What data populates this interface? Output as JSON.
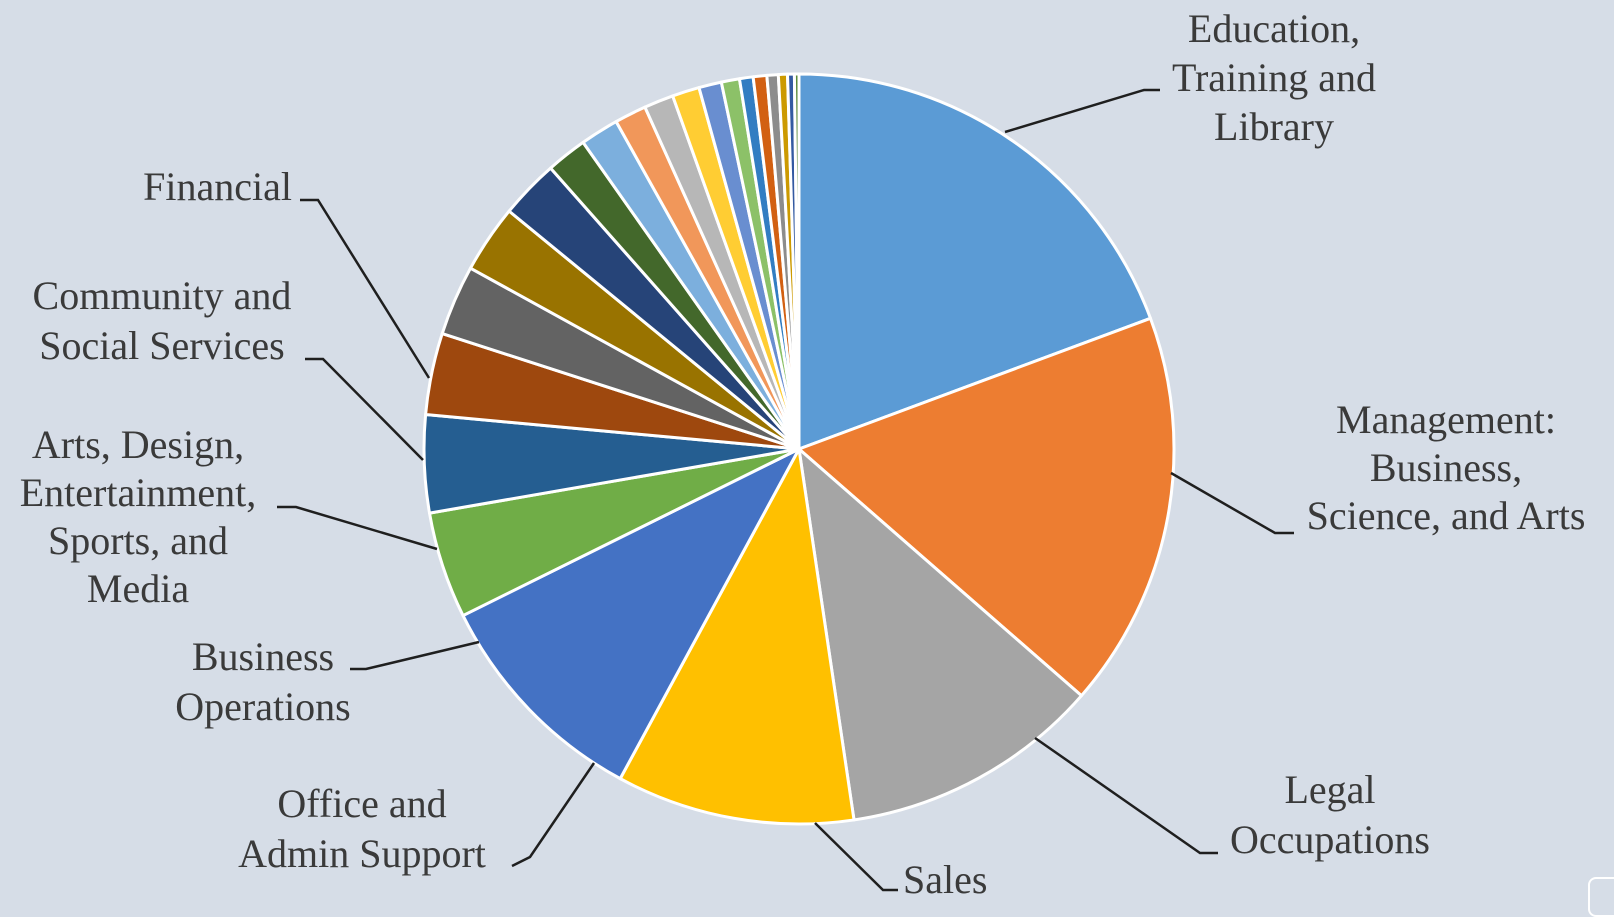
{
  "chart_data": {
    "type": "pie",
    "title": "",
    "slices": [
      {
        "label": "Education, Training and Library",
        "value": 19.8,
        "color": "#5b9bd5"
      },
      {
        "label": "Management: Business, Science, and Arts",
        "value": 17.5,
        "color": "#ed7d31"
      },
      {
        "label": "Legal Occupations",
        "value": 11.5,
        "color": "#a5a5a5"
      },
      {
        "label": "Sales",
        "value": 10.5,
        "color": "#ffc000"
      },
      {
        "label": "Office and Admin Support",
        "value": 10.0,
        "color": "#4472c4"
      },
      {
        "label": "Business Operations",
        "value": 4.7,
        "color": "#70ad47"
      },
      {
        "label": "Arts, Design, Entertainment, Sports, and Media",
        "value": 4.3,
        "color": "#255e91"
      },
      {
        "label": "Community and Social Services",
        "value": 3.6,
        "color": "#9e480e"
      },
      {
        "label": "Financial",
        "value": 3.1,
        "color": "#636363"
      },
      {
        "label": "",
        "value": 3.0,
        "color": "#997300"
      },
      {
        "label": "",
        "value": 2.6,
        "color": "#264478"
      },
      {
        "label": "",
        "value": 1.8,
        "color": "#43682b"
      },
      {
        "label": "",
        "value": 1.7,
        "color": "#7cafdd"
      },
      {
        "label": "",
        "value": 1.4,
        "color": "#f1975a"
      },
      {
        "label": "",
        "value": 1.3,
        "color": "#b7b7b7"
      },
      {
        "label": "",
        "value": 1.2,
        "color": "#ffcd33"
      },
      {
        "label": "",
        "value": 1.0,
        "color": "#698ed0"
      },
      {
        "label": "",
        "value": 0.8,
        "color": "#8cc168"
      },
      {
        "label": "",
        "value": 0.6,
        "color": "#327dc2"
      },
      {
        "label": "",
        "value": 0.6,
        "color": "#d26012"
      },
      {
        "label": "",
        "value": 0.5,
        "color": "#8c8c8c"
      },
      {
        "label": "",
        "value": 0.4,
        "color": "#cc9a00"
      },
      {
        "label": "",
        "value": 0.3,
        "color": "#335aa1"
      },
      {
        "label": "",
        "value": 0.2,
        "color": "#5a8a39"
      }
    ],
    "legend": "none",
    "data_labels": [
      {
        "slice": 0,
        "lines": [
          "Education,",
          "Training  and",
          "Library"
        ]
      },
      {
        "slice": 1,
        "lines": [
          "Management:",
          "Business,",
          "Science, and Arts"
        ]
      },
      {
        "slice": 2,
        "lines": [
          "Legal",
          "Occupations"
        ]
      },
      {
        "slice": 3,
        "lines": [
          "Sales"
        ]
      },
      {
        "slice": 4,
        "lines": [
          "Office and",
          "Admin Support"
        ]
      },
      {
        "slice": 5,
        "lines": [
          "Business",
          "Operations"
        ]
      },
      {
        "slice": 6,
        "lines": [
          "Arts, Design,",
          "Entertainment,",
          "Sports,  and",
          "Media"
        ]
      },
      {
        "slice": 7,
        "lines": [
          "Community  and",
          "Social Services"
        ]
      },
      {
        "slice": 8,
        "lines": [
          "Financial"
        ]
      }
    ],
    "background_color": "#d6dde7"
  }
}
